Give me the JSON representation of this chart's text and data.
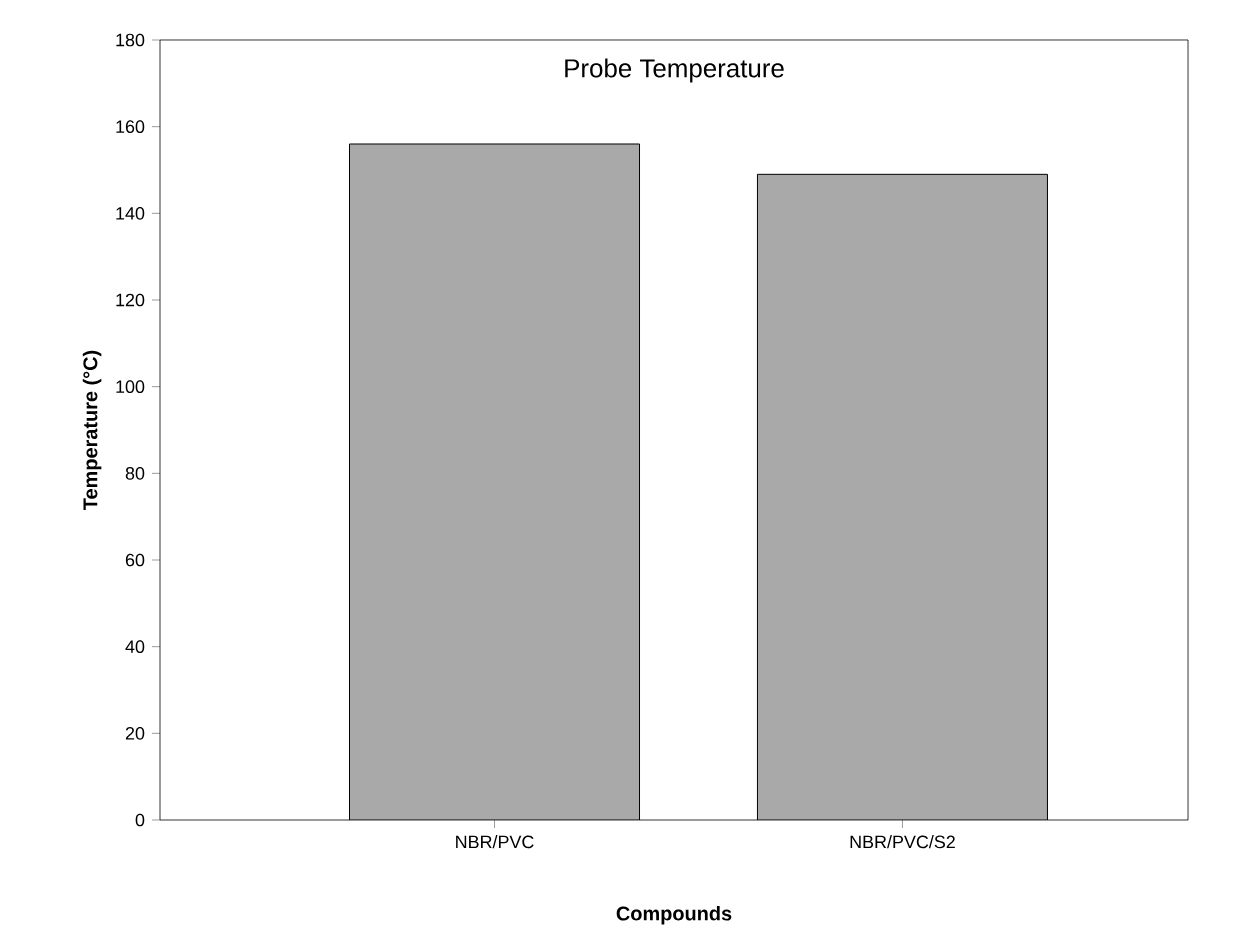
{
  "chart_data": {
    "type": "bar",
    "title": "Probe Temperature",
    "xlabel": "Compounds",
    "ylabel": "Temperature (°C)",
    "categories": [
      "NBR/PVC",
      "NBR/PVC/S2"
    ],
    "values": [
      156,
      149
    ],
    "color": "#a9a9a9",
    "ylim": [
      0,
      180
    ],
    "yticks": [
      0,
      20,
      40,
      60,
      80,
      100,
      120,
      140,
      160,
      180
    ],
    "grid": false
  }
}
